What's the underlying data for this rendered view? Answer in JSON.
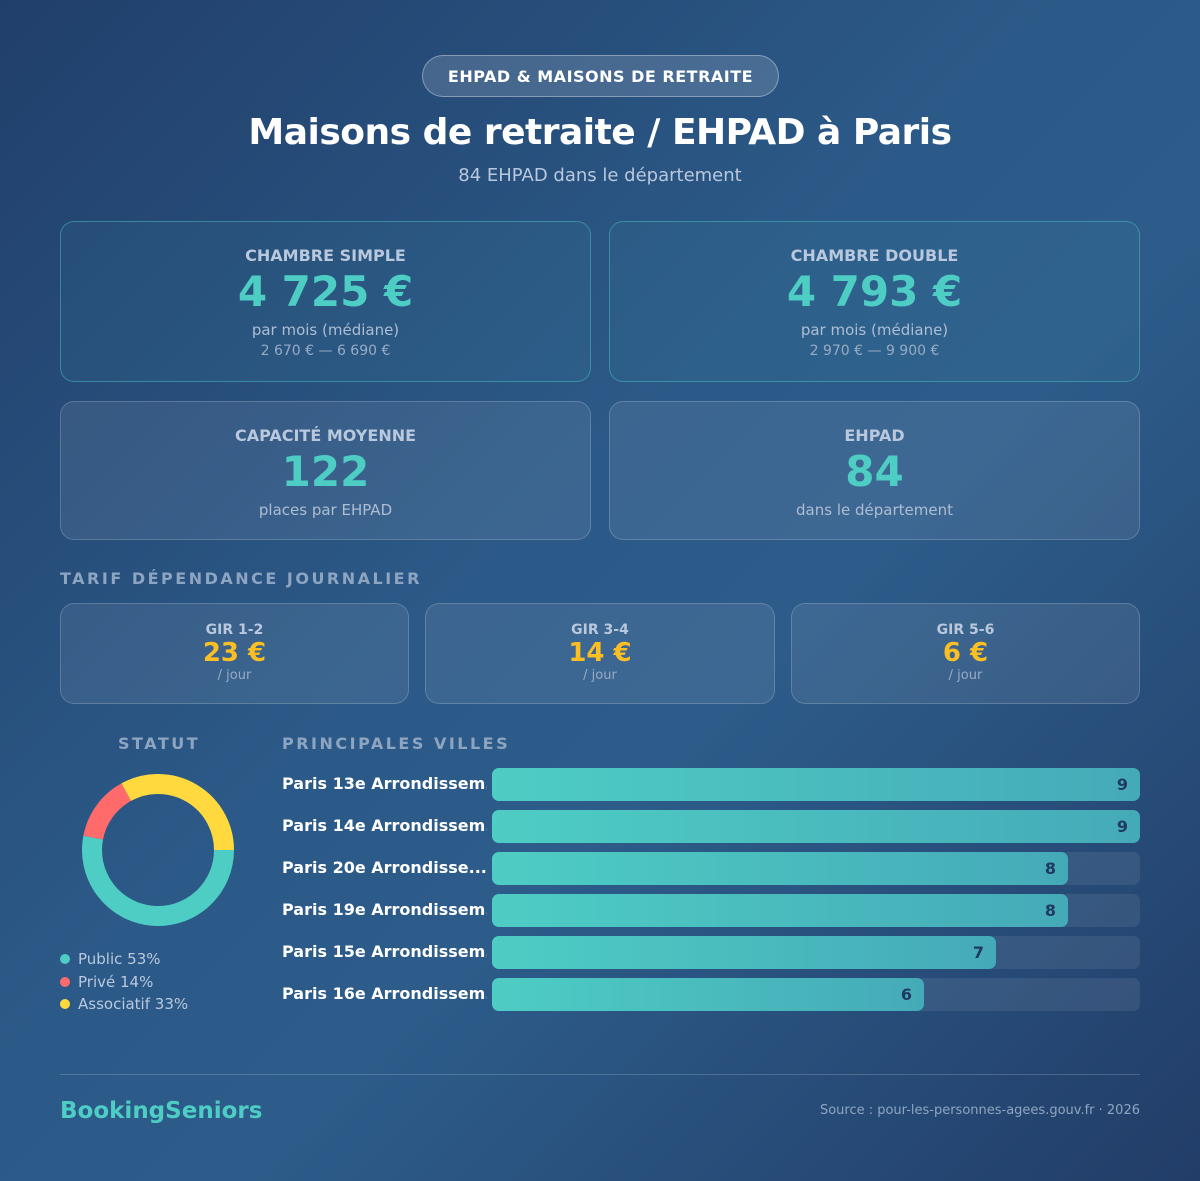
{
  "header": {
    "badge": "EHPAD & MAISONS DE RETRAITE",
    "title": "Maisons de retraite / EHPAD à Paris",
    "subtitle": "84 EHPAD dans le département"
  },
  "cards": [
    {
      "label": "CHAMBRE SIMPLE",
      "value": "4 725 €",
      "sub": "par mois (médiane)",
      "range": "2 670 € — 6 690 €"
    },
    {
      "label": "CHAMBRE DOUBLE",
      "value": "4 793 €",
      "sub": "par mois (médiane)",
      "range": "2 970 € — 9 900 €"
    },
    {
      "label": "CAPACITÉ MOYENNE",
      "value": "122",
      "sub": "places par EHPAD"
    },
    {
      "label": "EHPAD",
      "value": "84",
      "sub": "dans le département"
    }
  ],
  "tarif": {
    "title": "TARIF DÉPENDANCE JOURNALIER",
    "items": [
      {
        "label": "GIR 1-2",
        "value": "23 €",
        "sub": "/ jour"
      },
      {
        "label": "GIR 3-4",
        "value": "14 €",
        "sub": "/ jour"
      },
      {
        "label": "GIR 5-6",
        "value": "6 €",
        "sub": "/ jour"
      }
    ]
  },
  "statut": {
    "title": "STATUT",
    "items": [
      {
        "label": "Public 53%",
        "percent": 53,
        "color": "#4ecdc4"
      },
      {
        "label": "Privé 14%",
        "percent": 14,
        "color": "#ff6b6b"
      },
      {
        "label": "Associatif 33%",
        "percent": 33,
        "color": "#ffd93d"
      }
    ]
  },
  "villes": {
    "title": "PRINCIPALES VILLES",
    "max": 9,
    "items": [
      {
        "name": "Paris 13e Arrondissem...",
        "value": 9
      },
      {
        "name": "Paris 14e Arrondissem...",
        "value": 9
      },
      {
        "name": "Paris 20e Arrondisse...",
        "value": 8
      },
      {
        "name": "Paris 19e Arrondissem...",
        "value": 8
      },
      {
        "name": "Paris 15e Arrondissem...",
        "value": 7
      },
      {
        "name": "Paris 16e Arrondissem...",
        "value": 6
      }
    ]
  },
  "footer": {
    "brand": "BookingSeniors",
    "source": "Source : pour-les-personnes-agees.gouv.fr · 2026"
  }
}
